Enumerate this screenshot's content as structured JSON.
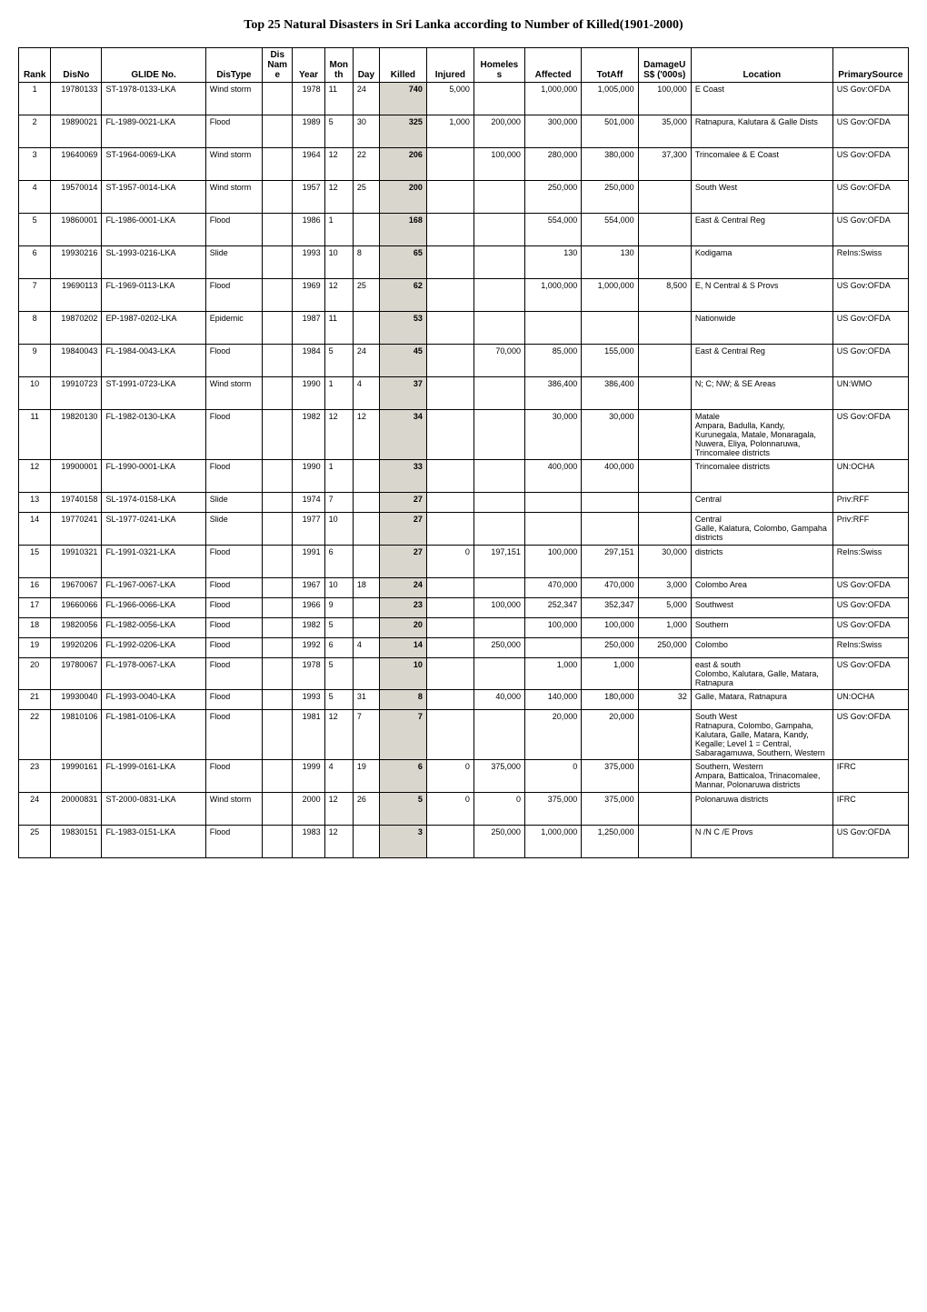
{
  "title": "Top 25 Natural Disasters in Sri Lanka according to Number of Killed(1901-2000)",
  "columns": [
    "Rank",
    "DisNo",
    "GLIDE No.",
    "DisType",
    "Dis Name",
    "Year",
    "Month",
    "Day",
    "Killed",
    "Injured",
    "Homeless",
    "Affected",
    "TotAff",
    "DamageUS$ ('000s)",
    "Location",
    "PrimarySource"
  ],
  "rows": [
    {
      "rank": "1",
      "disno": "19780133",
      "glide": "ST-1978-0133-LKA",
      "distype": "Wind storm",
      "disname": "",
      "year": "1978",
      "month": "11",
      "day": "24",
      "killed": "740",
      "injured": "5,000",
      "homeless": "",
      "affected": "1,000,000",
      "totaff": "1,005,000",
      "damage": "100,000",
      "location": "E Coast",
      "source": "US Gov:OFDA"
    },
    {
      "rank": "2",
      "disno": "19890021",
      "glide": "FL-1989-0021-LKA",
      "distype": "Flood",
      "disname": "",
      "year": "1989",
      "month": "5",
      "day": "30",
      "killed": "325",
      "injured": "1,000",
      "homeless": "200,000",
      "affected": "300,000",
      "totaff": "501,000",
      "damage": "35,000",
      "location": "Ratnapura, Kalutara & Galle Dists",
      "source": "US Gov:OFDA"
    },
    {
      "rank": "3",
      "disno": "19640069",
      "glide": "ST-1964-0069-LKA",
      "distype": "Wind storm",
      "disname": "",
      "year": "1964",
      "month": "12",
      "day": "22",
      "killed": "206",
      "injured": "",
      "homeless": "100,000",
      "affected": "280,000",
      "totaff": "380,000",
      "damage": "37,300",
      "location": "Trincomalee & E Coast",
      "source": "US Gov:OFDA"
    },
    {
      "rank": "4",
      "disno": "19570014",
      "glide": "ST-1957-0014-LKA",
      "distype": "Wind storm",
      "disname": "",
      "year": "1957",
      "month": "12",
      "day": "25",
      "killed": "200",
      "injured": "",
      "homeless": "",
      "affected": "250,000",
      "totaff": "250,000",
      "damage": "",
      "location": "South West",
      "source": "US Gov:OFDA"
    },
    {
      "rank": "5",
      "disno": "19860001",
      "glide": "FL-1986-0001-LKA",
      "distype": "Flood",
      "disname": "",
      "year": "1986",
      "month": "1",
      "day": "",
      "killed": "168",
      "injured": "",
      "homeless": "",
      "affected": "554,000",
      "totaff": "554,000",
      "damage": "",
      "location": "East & Central Reg",
      "source": "US Gov:OFDA"
    },
    {
      "rank": "6",
      "disno": "19930216",
      "glide": "SL-1993-0216-LKA",
      "distype": "Slide",
      "disname": "",
      "year": "1993",
      "month": "10",
      "day": "8",
      "killed": "65",
      "injured": "",
      "homeless": "",
      "affected": "130",
      "totaff": "130",
      "damage": "",
      "location": "Kodigama",
      "source": "ReIns:Swiss"
    },
    {
      "rank": "7",
      "disno": "19690113",
      "glide": "FL-1969-0113-LKA",
      "distype": "Flood",
      "disname": "",
      "year": "1969",
      "month": "12",
      "day": "25",
      "killed": "62",
      "injured": "",
      "homeless": "",
      "affected": "1,000,000",
      "totaff": "1,000,000",
      "damage": "8,500",
      "location": "E, N Central & S Provs",
      "source": "US Gov:OFDA"
    },
    {
      "rank": "8",
      "disno": "19870202",
      "glide": "EP-1987-0202-LKA",
      "distype": "Epidemic",
      "disname": "",
      "year": "1987",
      "month": "11",
      "day": "",
      "killed": "53",
      "injured": "",
      "homeless": "",
      "affected": "",
      "totaff": "",
      "damage": "",
      "location": "Nationwide",
      "source": "US Gov:OFDA"
    },
    {
      "rank": "9",
      "disno": "19840043",
      "glide": "FL-1984-0043-LKA",
      "distype": "Flood",
      "disname": "",
      "year": "1984",
      "month": "5",
      "day": "24",
      "killed": "45",
      "injured": "",
      "homeless": "70,000",
      "affected": "85,000",
      "totaff": "155,000",
      "damage": "",
      "location": "East & Central Reg",
      "source": "US Gov:OFDA"
    },
    {
      "rank": "10",
      "disno": "19910723",
      "glide": "ST-1991-0723-LKA",
      "distype": "Wind storm",
      "disname": "",
      "year": "1990",
      "month": "1",
      "day": "4",
      "killed": "37",
      "injured": "",
      "homeless": "",
      "affected": "386,400",
      "totaff": "386,400",
      "damage": "",
      "location": "N; C; NW; & SE Areas",
      "source": "UN:WMO"
    },
    {
      "rank": "11",
      "disno": "19820130",
      "glide": "FL-1982-0130-LKA",
      "distype": "Flood",
      "disname": "",
      "year": "1982",
      "month": "12",
      "day": "12",
      "killed": "34",
      "injured": "",
      "homeless": "",
      "affected": "30,000",
      "totaff": "30,000",
      "damage": "",
      "location": "Matale\nAmpara, Badulla, Kandy, Kurunegala, Matale, Monaragala, Nuwera, Eliya, Polonnaruwa, Trincomalee districts",
      "source": "US Gov:OFDA"
    },
    {
      "rank": "12",
      "disno": "19900001",
      "glide": "FL-1990-0001-LKA",
      "distype": "Flood",
      "disname": "",
      "year": "1990",
      "month": "1",
      "day": "",
      "killed": "33",
      "injured": "",
      "homeless": "",
      "affected": "400,000",
      "totaff": "400,000",
      "damage": "",
      "location": "Trincomalee districts",
      "source": "UN:OCHA"
    },
    {
      "rank": "13",
      "disno": "19740158",
      "glide": "SL-1974-0158-LKA",
      "distype": "Slide",
      "disname": "",
      "year": "1974",
      "month": "7",
      "day": "",
      "killed": "27",
      "injured": "",
      "homeless": "",
      "affected": "",
      "totaff": "",
      "damage": "",
      "location": "Central",
      "source": "Priv:RFF"
    },
    {
      "rank": "14",
      "disno": "19770241",
      "glide": "SL-1977-0241-LKA",
      "distype": "Slide",
      "disname": "",
      "year": "1977",
      "month": "10",
      "day": "",
      "killed": "27",
      "injured": "",
      "homeless": "",
      "affected": "",
      "totaff": "",
      "damage": "",
      "location": "Central\nGalle, Kalatura, Colombo, Gampaha districts",
      "source": "Priv:RFF"
    },
    {
      "rank": "15",
      "disno": "19910321",
      "glide": "FL-1991-0321-LKA",
      "distype": "Flood",
      "disname": "",
      "year": "1991",
      "month": "6",
      "day": "",
      "killed": "27",
      "injured": "0",
      "homeless": "197,151",
      "affected": "100,000",
      "totaff": "297,151",
      "damage": "30,000",
      "location": "districts",
      "source": "ReIns:Swiss"
    },
    {
      "rank": "16",
      "disno": "19670067",
      "glide": "FL-1967-0067-LKA",
      "distype": "Flood",
      "disname": "",
      "year": "1967",
      "month": "10",
      "day": "18",
      "killed": "24",
      "injured": "",
      "homeless": "",
      "affected": "470,000",
      "totaff": "470,000",
      "damage": "3,000",
      "location": "Colombo Area",
      "source": "US Gov:OFDA"
    },
    {
      "rank": "17",
      "disno": "19660066",
      "glide": "FL-1966-0066-LKA",
      "distype": "Flood",
      "disname": "",
      "year": "1966",
      "month": "9",
      "day": "",
      "killed": "23",
      "injured": "",
      "homeless": "100,000",
      "affected": "252,347",
      "totaff": "352,347",
      "damage": "5,000",
      "location": "Southwest",
      "source": "US Gov:OFDA"
    },
    {
      "rank": "18",
      "disno": "19820056",
      "glide": "FL-1982-0056-LKA",
      "distype": "Flood",
      "disname": "",
      "year": "1982",
      "month": "5",
      "day": "",
      "killed": "20",
      "injured": "",
      "homeless": "",
      "affected": "100,000",
      "totaff": "100,000",
      "damage": "1,000",
      "location": "Southern",
      "source": "US Gov:OFDA"
    },
    {
      "rank": "19",
      "disno": "19920206",
      "glide": "FL-1992-0206-LKA",
      "distype": "Flood",
      "disname": "",
      "year": "1992",
      "month": "6",
      "day": "4",
      "killed": "14",
      "injured": "",
      "homeless": "250,000",
      "affected": "",
      "totaff": "250,000",
      "damage": "250,000",
      "location": "Colombo",
      "source": "ReIns:Swiss"
    },
    {
      "rank": "20",
      "disno": "19780067",
      "glide": "FL-1978-0067-LKA",
      "distype": "Flood",
      "disname": "",
      "year": "1978",
      "month": "5",
      "day": "",
      "killed": "10",
      "injured": "",
      "homeless": "",
      "affected": "1,000",
      "totaff": "1,000",
      "damage": "",
      "location": "east & south\nColombo, Kalutara, Galle, Matara, Ratnapura",
      "source": "US Gov:OFDA"
    },
    {
      "rank": "21",
      "disno": "19930040",
      "glide": "FL-1993-0040-LKA",
      "distype": "Flood",
      "disname": "",
      "year": "1993",
      "month": "5",
      "day": "31",
      "killed": "8",
      "injured": "",
      "homeless": "40,000",
      "affected": "140,000",
      "totaff": "180,000",
      "damage": "32",
      "location": "Galle, Matara, Ratnapura",
      "source": "UN:OCHA"
    },
    {
      "rank": "22",
      "disno": "19810106",
      "glide": "FL-1981-0106-LKA",
      "distype": "Flood",
      "disname": "",
      "year": "1981",
      "month": "12",
      "day": "7",
      "killed": "7",
      "injured": "",
      "homeless": "",
      "affected": "20,000",
      "totaff": "20,000",
      "damage": "",
      "location": "South West\nRatnapura, Colombo, Gampaha, Kalutara, Galle, Matara, Kandy, Kegalle; Level 1 = Central, Sabaragamuwa, Southern, Western",
      "source": "US Gov:OFDA"
    },
    {
      "rank": "23",
      "disno": "19990161",
      "glide": "FL-1999-0161-LKA",
      "distype": "Flood",
      "disname": "",
      "year": "1999",
      "month": "4",
      "day": "19",
      "killed": "6",
      "injured": "0",
      "homeless": "375,000",
      "affected": "0",
      "totaff": "375,000",
      "damage": "",
      "location": "Southern, Western\nAmpara, Batticaloa, Trinacomalee, Mannar, Polonaruwa districts",
      "source": "IFRC"
    },
    {
      "rank": "24",
      "disno": "20000831",
      "glide": "ST-2000-0831-LKA",
      "distype": "Wind storm",
      "disname": "",
      "year": "2000",
      "month": "12",
      "day": "26",
      "killed": "5",
      "injured": "0",
      "homeless": "0",
      "affected": "375,000",
      "totaff": "375,000",
      "damage": "",
      "location": "Polonaruwa districts",
      "source": "IFRC"
    },
    {
      "rank": "25",
      "disno": "19830151",
      "glide": "FL-1983-0151-LKA",
      "distype": "Flood",
      "disname": "",
      "year": "1983",
      "month": "12",
      "day": "",
      "killed": "3",
      "injured": "",
      "homeless": "250,000",
      "affected": "1,000,000",
      "totaff": "1,250,000",
      "damage": "",
      "location": "N /N C /E Provs",
      "source": "US Gov:OFDA"
    }
  ]
}
